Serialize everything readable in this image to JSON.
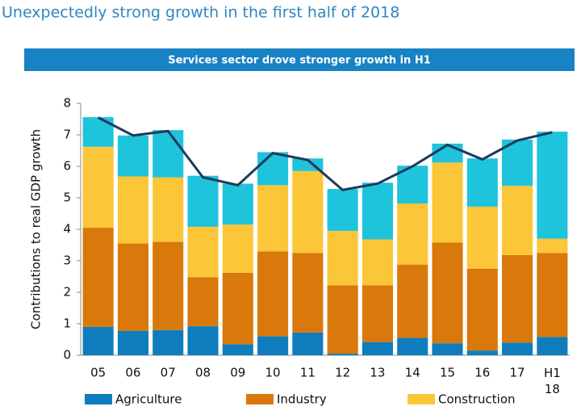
{
  "chart_data": {
    "type": "stacked_bar_line",
    "title": "Unexpectedly strong growth in the first half of 2018",
    "subtitle": "Services sector drove stronger growth in H1",
    "y_label": "Contributions to real GDP growth",
    "categories": [
      "05",
      "06",
      "07",
      "08",
      "09",
      "10",
      "11",
      "12",
      "13",
      "14",
      "15",
      "16",
      "17",
      "H1 18"
    ],
    "series": [
      {
        "name": "Agriculture",
        "color": "#0f7dbd",
        "values": [
          0.9,
          0.77,
          0.8,
          0.92,
          0.35,
          0.6,
          0.72,
          0.05,
          0.42,
          0.55,
          0.38,
          0.15,
          0.4,
          0.58
        ]
      },
      {
        "name": "Industry",
        "color": "#d9790b",
        "values": [
          3.15,
          2.78,
          2.8,
          1.56,
          2.27,
          2.7,
          2.53,
          2.17,
          1.8,
          2.33,
          3.2,
          2.6,
          2.78,
          2.67
        ]
      },
      {
        "name": "Construction",
        "color": "#fbc637",
        "values": [
          2.57,
          2.13,
          2.05,
          1.6,
          1.53,
          2.1,
          2.6,
          1.73,
          1.46,
          1.94,
          2.54,
          1.97,
          2.2,
          0.45
        ]
      },
      {
        "color": "#1ec3dc",
        "values": [
          0.94,
          1.3,
          1.5,
          1.62,
          1.3,
          1.05,
          0.4,
          1.33,
          1.8,
          1.2,
          0.6,
          1.53,
          1.47,
          3.4
        ]
      }
    ],
    "line": {
      "color": "#1e3a5a",
      "values": [
        7.55,
        6.98,
        7.12,
        5.65,
        5.4,
        6.42,
        6.2,
        5.25,
        5.45,
        6.0,
        6.68,
        6.22,
        6.82,
        7.08
      ]
    },
    "ylim": [
      0,
      8
    ],
    "yticks": [
      0,
      1,
      2,
      3,
      4,
      5,
      6,
      7,
      8
    ]
  }
}
